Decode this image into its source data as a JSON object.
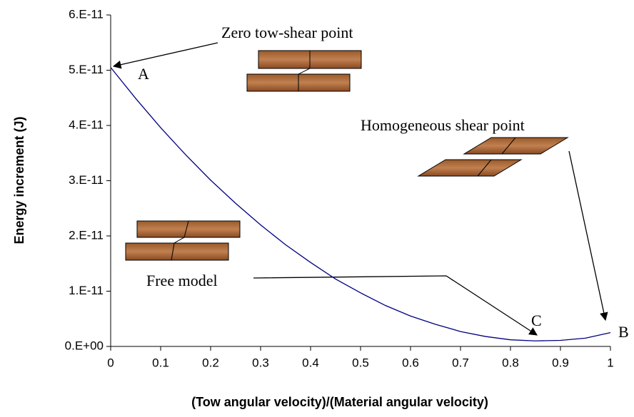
{
  "chart_data": {
    "type": "line",
    "y_label": "Energy increment (J)",
    "x_label": "(Tow angular velocity)/(Material angular velocity)",
    "annotations": {
      "zero": "Zero tow-shear point",
      "homogeneous": "Homogeneous shear point",
      "free": "Free model",
      "a": "A",
      "b": "B",
      "c": "C"
    },
    "x": [
      0,
      0.05,
      0.1,
      0.15,
      0.2,
      0.25,
      0.3,
      0.35,
      0.4,
      0.45,
      0.5,
      0.55,
      0.6,
      0.65,
      0.7,
      0.75,
      0.8,
      0.85,
      0.9,
      0.95,
      1
    ],
    "series": [
      {
        "color": "#000080",
        "values": [
          5.05e-11,
          4.49e-11,
          3.96e-11,
          3.47e-11,
          3.01e-11,
          2.59e-11,
          2.2e-11,
          1.84e-11,
          1.52e-11,
          1.22e-11,
          9.7e-12,
          7.4e-12,
          5.5e-12,
          4e-12,
          2.7e-12,
          1.8e-12,
          1.2e-12,
          1e-12,
          1.1e-12,
          1.5e-12,
          2.5e-12
        ]
      }
    ],
    "xlim": [
      0,
      1
    ],
    "xticks": [
      0,
      0.1,
      0.2,
      0.3,
      0.4,
      0.5,
      0.6,
      0.7,
      0.8,
      0.9,
      1
    ],
    "ylim": [
      0,
      6e-11
    ],
    "yticks": [
      {
        "value": 0,
        "label": "0.E+00"
      },
      {
        "value": 1e-11,
        "label": "1.E-11"
      },
      {
        "value": 2e-11,
        "label": "2.E-11"
      },
      {
        "value": 3e-11,
        "label": "3.E-11"
      },
      {
        "value": 4e-11,
        "label": "4.E-11"
      },
      {
        "value": 5e-11,
        "label": "5.E-11"
      },
      {
        "value": 6e-11,
        "label": "6.E-11"
      }
    ],
    "grid": false
  }
}
